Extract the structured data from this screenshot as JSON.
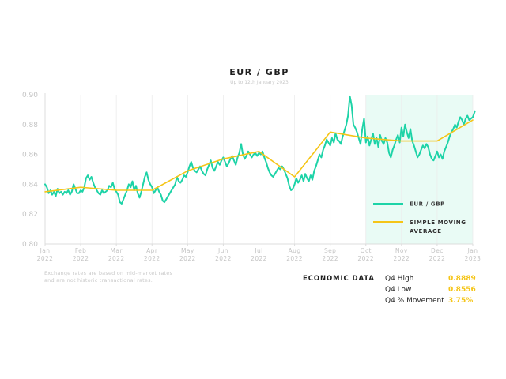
{
  "chart_data": {
    "type": "line",
    "title": "EUR / GBP",
    "subtitle": "Up to 12th January 2023",
    "ylim": [
      0.8,
      0.9
    ],
    "yticks": [
      "0.80",
      "0.82",
      "0.84",
      "0.86",
      "0.88",
      "0.90"
    ],
    "xticks": [
      {
        "m": "Jan",
        "y": "2022",
        "t": 0
      },
      {
        "m": "Feb",
        "y": "2022",
        "t": 1
      },
      {
        "m": "Mar",
        "y": "2022",
        "t": 2
      },
      {
        "m": "Apr",
        "y": "2022",
        "t": 3
      },
      {
        "m": "May",
        "y": "2022",
        "t": 4
      },
      {
        "m": "Jun",
        "y": "2022",
        "t": 5
      },
      {
        "m": "Jul",
        "y": "2022",
        "t": 6
      },
      {
        "m": "Aug",
        "y": "2022",
        "t": 7
      },
      {
        "m": "Sep",
        "y": "2022",
        "t": 8
      },
      {
        "m": "Oct",
        "y": "2022",
        "t": 9
      },
      {
        "m": "Nov",
        "y": "2022",
        "t": 10
      },
      {
        "m": "Dec",
        "y": "2022",
        "t": 11
      },
      {
        "m": "Jan",
        "y": "2023",
        "t": 12
      }
    ],
    "highlight": {
      "from": 9,
      "to": 12
    },
    "series": [
      {
        "name": "EUR / GBP",
        "color": "#1dd3a7",
        "points": [
          [
            0.0,
            0.84
          ],
          [
            0.05,
            0.838
          ],
          [
            0.1,
            0.834
          ],
          [
            0.15,
            0.836
          ],
          [
            0.2,
            0.833
          ],
          [
            0.25,
            0.835
          ],
          [
            0.3,
            0.832
          ],
          [
            0.35,
            0.837
          ],
          [
            0.4,
            0.834
          ],
          [
            0.45,
            0.835
          ],
          [
            0.5,
            0.833
          ],
          [
            0.55,
            0.835
          ],
          [
            0.6,
            0.834
          ],
          [
            0.65,
            0.836
          ],
          [
            0.7,
            0.833
          ],
          [
            0.75,
            0.835
          ],
          [
            0.8,
            0.84
          ],
          [
            0.85,
            0.837
          ],
          [
            0.9,
            0.834
          ],
          [
            0.95,
            0.834
          ],
          [
            1.0,
            0.836
          ],
          [
            1.05,
            0.835
          ],
          [
            1.1,
            0.838
          ],
          [
            1.15,
            0.844
          ],
          [
            1.2,
            0.846
          ],
          [
            1.25,
            0.843
          ],
          [
            1.3,
            0.845
          ],
          [
            1.35,
            0.841
          ],
          [
            1.4,
            0.838
          ],
          [
            1.45,
            0.836
          ],
          [
            1.5,
            0.834
          ],
          [
            1.55,
            0.833
          ],
          [
            1.6,
            0.836
          ],
          [
            1.65,
            0.834
          ],
          [
            1.7,
            0.835
          ],
          [
            1.75,
            0.836
          ],
          [
            1.8,
            0.839
          ],
          [
            1.85,
            0.838
          ],
          [
            1.9,
            0.841
          ],
          [
            1.95,
            0.837
          ],
          [
            2.0,
            0.835
          ],
          [
            2.05,
            0.833
          ],
          [
            2.1,
            0.828
          ],
          [
            2.15,
            0.827
          ],
          [
            2.2,
            0.83
          ],
          [
            2.25,
            0.833
          ],
          [
            2.3,
            0.836
          ],
          [
            2.35,
            0.84
          ],
          [
            2.4,
            0.838
          ],
          [
            2.45,
            0.842
          ],
          [
            2.5,
            0.836
          ],
          [
            2.55,
            0.839
          ],
          [
            2.6,
            0.834
          ],
          [
            2.65,
            0.831
          ],
          [
            2.7,
            0.835
          ],
          [
            2.75,
            0.84
          ],
          [
            2.8,
            0.845
          ],
          [
            2.85,
            0.848
          ],
          [
            2.9,
            0.843
          ],
          [
            2.95,
            0.84
          ],
          [
            3.0,
            0.838
          ],
          [
            3.05,
            0.834
          ],
          [
            3.1,
            0.836
          ],
          [
            3.15,
            0.838
          ],
          [
            3.2,
            0.835
          ],
          [
            3.25,
            0.833
          ],
          [
            3.3,
            0.829
          ],
          [
            3.35,
            0.828
          ],
          [
            3.4,
            0.83
          ],
          [
            3.45,
            0.832
          ],
          [
            3.5,
            0.834
          ],
          [
            3.55,
            0.836
          ],
          [
            3.6,
            0.838
          ],
          [
            3.65,
            0.84
          ],
          [
            3.7,
            0.845
          ],
          [
            3.75,
            0.842
          ],
          [
            3.8,
            0.841
          ],
          [
            3.85,
            0.843
          ],
          [
            3.9,
            0.846
          ],
          [
            3.95,
            0.845
          ],
          [
            4.0,
            0.848
          ],
          [
            4.05,
            0.852
          ],
          [
            4.1,
            0.855
          ],
          [
            4.15,
            0.851
          ],
          [
            4.2,
            0.849
          ],
          [
            4.25,
            0.848
          ],
          [
            4.3,
            0.85
          ],
          [
            4.35,
            0.852
          ],
          [
            4.4,
            0.849
          ],
          [
            4.45,
            0.847
          ],
          [
            4.5,
            0.846
          ],
          [
            4.55,
            0.85
          ],
          [
            4.6,
            0.853
          ],
          [
            4.65,
            0.856
          ],
          [
            4.7,
            0.851
          ],
          [
            4.75,
            0.849
          ],
          [
            4.8,
            0.852
          ],
          [
            4.85,
            0.855
          ],
          [
            4.9,
            0.853
          ],
          [
            4.95,
            0.856
          ],
          [
            5.0,
            0.858
          ],
          [
            5.05,
            0.855
          ],
          [
            5.1,
            0.852
          ],
          [
            5.15,
            0.854
          ],
          [
            5.2,
            0.857
          ],
          [
            5.25,
            0.859
          ],
          [
            5.3,
            0.856
          ],
          [
            5.35,
            0.853
          ],
          [
            5.4,
            0.858
          ],
          [
            5.45,
            0.861
          ],
          [
            5.5,
            0.867
          ],
          [
            5.55,
            0.86
          ],
          [
            5.6,
            0.857
          ],
          [
            5.65,
            0.859
          ],
          [
            5.7,
            0.862
          ],
          [
            5.75,
            0.86
          ],
          [
            5.8,
            0.858
          ],
          [
            5.85,
            0.86
          ],
          [
            5.9,
            0.861
          ],
          [
            5.95,
            0.859
          ],
          [
            6.0,
            0.861
          ],
          [
            6.05,
            0.86
          ],
          [
            6.1,
            0.862
          ],
          [
            6.15,
            0.858
          ],
          [
            6.2,
            0.855
          ],
          [
            6.25,
            0.851
          ],
          [
            6.3,
            0.848
          ],
          [
            6.35,
            0.846
          ],
          [
            6.4,
            0.845
          ],
          [
            6.45,
            0.847
          ],
          [
            6.5,
            0.849
          ],
          [
            6.55,
            0.851
          ],
          [
            6.6,
            0.85
          ],
          [
            6.65,
            0.852
          ],
          [
            6.7,
            0.85
          ],
          [
            6.75,
            0.847
          ],
          [
            6.8,
            0.844
          ],
          [
            6.85,
            0.839
          ],
          [
            6.9,
            0.836
          ],
          [
            6.95,
            0.837
          ],
          [
            7.0,
            0.84
          ],
          [
            7.05,
            0.844
          ],
          [
            7.1,
            0.841
          ],
          [
            7.15,
            0.843
          ],
          [
            7.2,
            0.846
          ],
          [
            7.25,
            0.842
          ],
          [
            7.3,
            0.847
          ],
          [
            7.35,
            0.844
          ],
          [
            7.4,
            0.842
          ],
          [
            7.45,
            0.846
          ],
          [
            7.5,
            0.843
          ],
          [
            7.55,
            0.849
          ],
          [
            7.6,
            0.852
          ],
          [
            7.65,
            0.856
          ],
          [
            7.7,
            0.86
          ],
          [
            7.75,
            0.858
          ],
          [
            7.8,
            0.863
          ],
          [
            7.85,
            0.866
          ],
          [
            7.9,
            0.87
          ],
          [
            7.95,
            0.868
          ],
          [
            8.0,
            0.866
          ],
          [
            8.05,
            0.871
          ],
          [
            8.1,
            0.868
          ],
          [
            8.15,
            0.874
          ],
          [
            8.2,
            0.87
          ],
          [
            8.25,
            0.869
          ],
          [
            8.3,
            0.867
          ],
          [
            8.35,
            0.872
          ],
          [
            8.4,
            0.876
          ],
          [
            8.45,
            0.88
          ],
          [
            8.5,
            0.886
          ],
          [
            8.55,
            0.899
          ],
          [
            8.6,
            0.893
          ],
          [
            8.65,
            0.88
          ],
          [
            8.7,
            0.878
          ],
          [
            8.75,
            0.875
          ],
          [
            8.8,
            0.871
          ],
          [
            8.85,
            0.867
          ],
          [
            8.9,
            0.877
          ],
          [
            8.95,
            0.884
          ],
          [
            9.0,
            0.868
          ],
          [
            9.05,
            0.872
          ],
          [
            9.1,
            0.866
          ],
          [
            9.15,
            0.87
          ],
          [
            9.2,
            0.874
          ],
          [
            9.25,
            0.867
          ],
          [
            9.3,
            0.871
          ],
          [
            9.35,
            0.865
          ],
          [
            9.4,
            0.873
          ],
          [
            9.45,
            0.869
          ],
          [
            9.5,
            0.867
          ],
          [
            9.55,
            0.871
          ],
          [
            9.6,
            0.868
          ],
          [
            9.65,
            0.861
          ],
          [
            9.7,
            0.858
          ],
          [
            9.75,
            0.863
          ],
          [
            9.8,
            0.866
          ],
          [
            9.85,
            0.87
          ],
          [
            9.9,
            0.873
          ],
          [
            9.95,
            0.868
          ],
          [
            10.0,
            0.878
          ],
          [
            10.05,
            0.872
          ],
          [
            10.1,
            0.88
          ],
          [
            10.15,
            0.875
          ],
          [
            10.2,
            0.871
          ],
          [
            10.25,
            0.877
          ],
          [
            10.3,
            0.869
          ],
          [
            10.35,
            0.866
          ],
          [
            10.4,
            0.862
          ],
          [
            10.45,
            0.858
          ],
          [
            10.5,
            0.86
          ],
          [
            10.55,
            0.863
          ],
          [
            10.6,
            0.866
          ],
          [
            10.65,
            0.864
          ],
          [
            10.7,
            0.867
          ],
          [
            10.75,
            0.865
          ],
          [
            10.8,
            0.86
          ],
          [
            10.85,
            0.857
          ],
          [
            10.9,
            0.856
          ],
          [
            10.95,
            0.859
          ],
          [
            11.0,
            0.862
          ],
          [
            11.05,
            0.858
          ],
          [
            11.1,
            0.86
          ],
          [
            11.15,
            0.857
          ],
          [
            11.2,
            0.862
          ],
          [
            11.25,
            0.865
          ],
          [
            11.3,
            0.868
          ],
          [
            11.35,
            0.872
          ],
          [
            11.4,
            0.875
          ],
          [
            11.45,
            0.877
          ],
          [
            11.5,
            0.88
          ],
          [
            11.55,
            0.878
          ],
          [
            11.6,
            0.882
          ],
          [
            11.65,
            0.885
          ],
          [
            11.7,
            0.883
          ],
          [
            11.75,
            0.88
          ],
          [
            11.8,
            0.884
          ],
          [
            11.85,
            0.886
          ],
          [
            11.9,
            0.883
          ],
          [
            11.95,
            0.884
          ],
          [
            12.0,
            0.885
          ],
          [
            12.03,
            0.887
          ],
          [
            12.06,
            0.889
          ]
        ]
      },
      {
        "name": "SIMPLE MOVING AVERAGE",
        "color": "#f5c518",
        "points": [
          [
            0.0,
            0.835
          ],
          [
            1.0,
            0.838
          ],
          [
            2.0,
            0.836
          ],
          [
            3.0,
            0.836
          ],
          [
            4.0,
            0.849
          ],
          [
            5.0,
            0.857
          ],
          [
            6.0,
            0.862
          ],
          [
            7.0,
            0.845
          ],
          [
            8.0,
            0.875
          ],
          [
            9.0,
            0.871
          ],
          [
            10.0,
            0.869
          ],
          [
            11.0,
            0.869
          ],
          [
            12.0,
            0.883
          ]
        ]
      }
    ],
    "legend": {
      "series1": "EUR / GBP",
      "series2_line1": "SIMPLE MOVING",
      "series2_line2": "AVERAGE"
    }
  },
  "note": {
    "line1": "Exchange rates are based on mid-market rates",
    "line2": "and are not historic transactional rates."
  },
  "economic": {
    "title": "ECONOMIC DATA",
    "rows": [
      {
        "label": "Q4 High",
        "value": "0.8889"
      },
      {
        "label": "Q4 Low",
        "value": "0.8556"
      },
      {
        "label": "Q4 % Movement",
        "value": "3.75%"
      }
    ]
  }
}
